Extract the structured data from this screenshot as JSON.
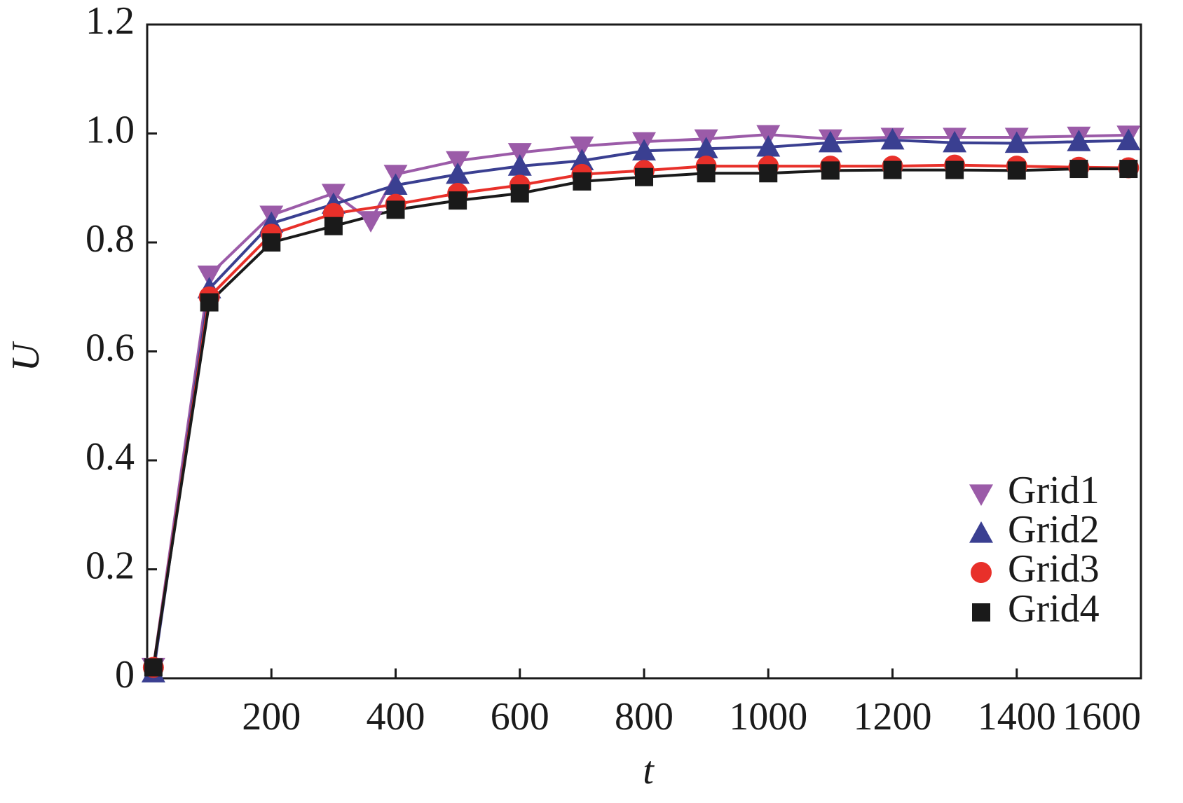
{
  "chart_data": {
    "type": "line",
    "x_label": "t",
    "y_label": "U",
    "xlim": [
      0,
      1600
    ],
    "xticks": [
      200,
      400,
      600,
      800,
      1000,
      1200,
      1400,
      1600
    ],
    "ylim": [
      0,
      1.2
    ],
    "yticks": [
      0,
      0.2,
      0.4,
      0.6,
      0.8,
      {
        "value": 1,
        "label": "1.0"
      },
      1.2
    ],
    "legend": "lower right",
    "series": [
      {
        "name": "Grid1",
        "color": "#9b5ba8",
        "marker": "triangle-down",
        "x": [
          10,
          100,
          200,
          300,
          360,
          400,
          500,
          600,
          700,
          800,
          900,
          1000,
          1100,
          1200,
          1300,
          1400,
          1500,
          1580
        ],
        "values": [
          0.02,
          0.74,
          0.85,
          0.89,
          0.84,
          0.925,
          0.95,
          0.965,
          0.977,
          0.985,
          0.99,
          0.998,
          0.99,
          0.993,
          0.993,
          0.993,
          0.995,
          0.997
        ]
      },
      {
        "name": "Grid2",
        "color": "#3a3f91",
        "marker": "triangle-up",
        "x": [
          10,
          100,
          200,
          300,
          400,
          500,
          600,
          700,
          800,
          900,
          1000,
          1100,
          1200,
          1300,
          1400,
          1500,
          1580
        ],
        "values": [
          0.01,
          0.715,
          0.835,
          0.87,
          0.905,
          0.925,
          0.94,
          0.95,
          0.968,
          0.972,
          0.975,
          0.983,
          0.988,
          0.983,
          0.982,
          0.985,
          0.987
        ]
      },
      {
        "name": "Grid3",
        "color": "#e8302a",
        "marker": "circle",
        "x": [
          10,
          100,
          200,
          300,
          400,
          500,
          600,
          700,
          800,
          900,
          1000,
          1100,
          1200,
          1300,
          1400,
          1500,
          1580
        ],
        "values": [
          0.02,
          0.7,
          0.815,
          0.853,
          0.87,
          0.89,
          0.905,
          0.925,
          0.932,
          0.94,
          0.94,
          0.94,
          0.94,
          0.942,
          0.94,
          0.938,
          0.937
        ]
      },
      {
        "name": "Grid4",
        "color": "#1a1a1a",
        "marker": "square",
        "x": [
          10,
          100,
          200,
          300,
          400,
          500,
          600,
          700,
          800,
          900,
          1000,
          1100,
          1200,
          1300,
          1400,
          1500,
          1580
        ],
        "values": [
          0.02,
          0.69,
          0.8,
          0.83,
          0.86,
          0.877,
          0.89,
          0.912,
          0.92,
          0.927,
          0.927,
          0.932,
          0.933,
          0.933,
          0.932,
          0.935,
          0.935
        ]
      }
    ]
  }
}
